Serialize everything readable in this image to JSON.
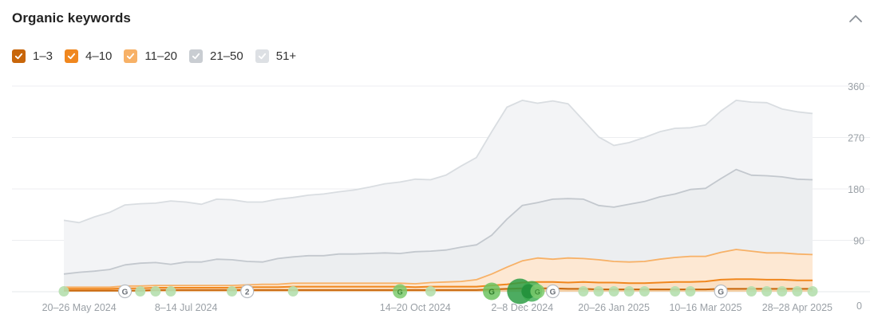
{
  "header": {
    "title": "Organic keywords",
    "collapse_icon": "chevron-up-icon"
  },
  "legend": [
    {
      "label": "1–3",
      "color": "#c8660a",
      "checked": true
    },
    {
      "label": "4–10",
      "color": "#f0871e",
      "checked": true
    },
    {
      "label": "11–20",
      "color": "#f7b167",
      "checked": true
    },
    {
      "label": "21–50",
      "color": "#c9cdd2",
      "checked": true
    },
    {
      "label": "51+",
      "color": "#dde0e4",
      "checked": true
    }
  ],
  "chart_data": {
    "type": "area",
    "stacked": true,
    "y_ticks": [
      0,
      90,
      180,
      270,
      360
    ],
    "ylim": [
      0,
      360
    ],
    "y_axis_side": "right",
    "grid": true,
    "x_tick_labels": [
      "20–26 May 2024",
      "8–14 Jul 2024",
      "14–20 Oct 2024",
      "2–8 Dec 2024",
      "20–26 Jan 2025",
      "10–16 Mar 2025",
      "28–28 Apr 2025"
    ],
    "x_tick_index": [
      1,
      8,
      23,
      30,
      36,
      42,
      48
    ],
    "series": [
      {
        "name": "1–3",
        "color": "#c8660a",
        "values": [
          2,
          2,
          2,
          2,
          2,
          2,
          3,
          3,
          3,
          3,
          3,
          3,
          3,
          3,
          3,
          3,
          3,
          3,
          3,
          3,
          3,
          3,
          3,
          3,
          3,
          3,
          3,
          3,
          4,
          5,
          6,
          6,
          6,
          5,
          5,
          4,
          4,
          4,
          4,
          4,
          4,
          4,
          4,
          5,
          5,
          5,
          5,
          5,
          5,
          5
        ]
      },
      {
        "name": "4–10",
        "color": "#f0871e",
        "values": [
          3,
          3,
          3,
          3,
          4,
          4,
          4,
          4,
          4,
          4,
          4,
          4,
          5,
          5,
          5,
          6,
          6,
          6,
          6,
          6,
          6,
          6,
          6,
          5,
          6,
          6,
          6,
          6,
          7,
          8,
          10,
          11,
          11,
          11,
          12,
          12,
          12,
          11,
          11,
          12,
          13,
          13,
          14,
          16,
          17,
          17,
          16,
          16,
          15,
          15
        ]
      },
      {
        "name": "11–20",
        "color": "#f7b167",
        "values": [
          3,
          3,
          3,
          3,
          4,
          4,
          4,
          4,
          4,
          4,
          4,
          4,
          4,
          5,
          5,
          6,
          6,
          6,
          6,
          6,
          6,
          6,
          6,
          6,
          7,
          8,
          9,
          12,
          20,
          30,
          38,
          42,
          40,
          43,
          41,
          40,
          37,
          37,
          38,
          41,
          43,
          45,
          44,
          48,
          52,
          49,
          47,
          47,
          46,
          45
        ]
      },
      {
        "name": "21–50",
        "color": "#c9cdd2",
        "values": [
          23,
          26,
          28,
          31,
          37,
          40,
          40,
          37,
          41,
          41,
          46,
          45,
          41,
          39,
          45,
          46,
          48,
          48,
          51,
          51,
          52,
          53,
          52,
          56,
          55,
          56,
          60,
          61,
          68,
          84,
          97,
          97,
          105,
          104,
          104,
          95,
          95,
          101,
          105,
          109,
          111,
          117,
          119,
          129,
          140,
          133,
          135,
          133,
          131,
          131
        ]
      },
      {
        "name": "51+",
        "color": "#dde0e4",
        "values": [
          94,
          87,
          95,
          100,
          105,
          104,
          104,
          111,
          105,
          101,
          105,
          105,
          104,
          105,
          104,
          104,
          106,
          108,
          109,
          112,
          116,
          121,
          125,
          127,
          125,
          131,
          142,
          153,
          181,
          196,
          184,
          174,
          172,
          166,
          138,
          120,
          108,
          108,
          112,
          114,
          115,
          108,
          111,
          118,
          121,
          128,
          128,
          119,
          118,
          116
        ]
      }
    ],
    "annotations": [
      {
        "index": 0,
        "kind": "dot"
      },
      {
        "index": 4,
        "kind": "google"
      },
      {
        "index": 5,
        "kind": "dot"
      },
      {
        "index": 6,
        "kind": "dot"
      },
      {
        "index": 7,
        "kind": "dot"
      },
      {
        "index": 11,
        "kind": "dot"
      },
      {
        "index": 12,
        "kind": "number",
        "label": "2"
      },
      {
        "index": 15,
        "kind": "dot"
      },
      {
        "index": 22,
        "kind": "google-green"
      },
      {
        "index": 24,
        "kind": "dot"
      },
      {
        "index": 28,
        "kind": "google-green-large"
      },
      {
        "index": 30,
        "kind": "cluster"
      },
      {
        "index": 31,
        "kind": "google-green"
      },
      {
        "index": 32,
        "kind": "google"
      },
      {
        "index": 34,
        "kind": "dot"
      },
      {
        "index": 35,
        "kind": "dot"
      },
      {
        "index": 36,
        "kind": "dot"
      },
      {
        "index": 37,
        "kind": "dot"
      },
      {
        "index": 38,
        "kind": "dot"
      },
      {
        "index": 40,
        "kind": "dot"
      },
      {
        "index": 41,
        "kind": "dot"
      },
      {
        "index": 43,
        "kind": "google"
      },
      {
        "index": 45,
        "kind": "dot"
      },
      {
        "index": 46,
        "kind": "dot"
      },
      {
        "index": 47,
        "kind": "dot"
      },
      {
        "index": 48,
        "kind": "dot"
      },
      {
        "index": 49,
        "kind": "dot"
      }
    ]
  }
}
